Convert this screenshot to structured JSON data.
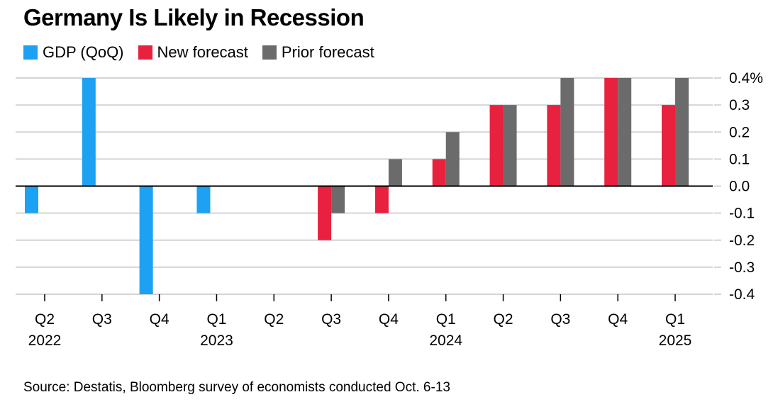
{
  "title": "Germany Is Likely in Recession",
  "source": "Source: Destatis, Bloomberg survey of economists conducted Oct. 6-13",
  "legend": [
    {
      "label": "GDP (QoQ)",
      "color": "#1da1f2"
    },
    {
      "label": "New forecast",
      "color": "#e8213f"
    },
    {
      "label": "Prior forecast",
      "color": "#6b6b6b"
    }
  ],
  "chart_data": {
    "type": "bar",
    "categories": [
      {
        "quarter": "Q2",
        "year": "2022"
      },
      {
        "quarter": "Q3",
        "year": ""
      },
      {
        "quarter": "Q4",
        "year": ""
      },
      {
        "quarter": "Q1",
        "year": "2023"
      },
      {
        "quarter": "Q2",
        "year": ""
      },
      {
        "quarter": "Q3",
        "year": ""
      },
      {
        "quarter": "Q4",
        "year": ""
      },
      {
        "quarter": "Q1",
        "year": "2024"
      },
      {
        "quarter": "Q2",
        "year": ""
      },
      {
        "quarter": "Q3",
        "year": ""
      },
      {
        "quarter": "Q4",
        "year": ""
      },
      {
        "quarter": "Q1",
        "year": "2025"
      }
    ],
    "series": [
      {
        "name": "GDP (QoQ)",
        "color": "#1da1f2",
        "values": [
          -0.1,
          0.4,
          -0.4,
          -0.1,
          0.0,
          null,
          null,
          null,
          null,
          null,
          null,
          null
        ]
      },
      {
        "name": "New forecast",
        "color": "#e8213f",
        "values": [
          null,
          null,
          null,
          null,
          null,
          -0.2,
          -0.1,
          0.1,
          0.3,
          0.3,
          0.4,
          0.3
        ]
      },
      {
        "name": "Prior forecast",
        "color": "#6b6b6b",
        "values": [
          null,
          null,
          null,
          null,
          null,
          -0.1,
          0.1,
          0.2,
          0.3,
          0.4,
          0.4,
          0.4
        ]
      }
    ],
    "yticks": [
      "0.4%",
      "0.3",
      "0.2",
      "0.1",
      "0.0",
      "-0.1",
      "-0.2",
      "-0.3",
      "-0.4"
    ],
    "ylim": [
      -0.4,
      0.4
    ],
    "grid": true,
    "legend_position": "top-left"
  }
}
